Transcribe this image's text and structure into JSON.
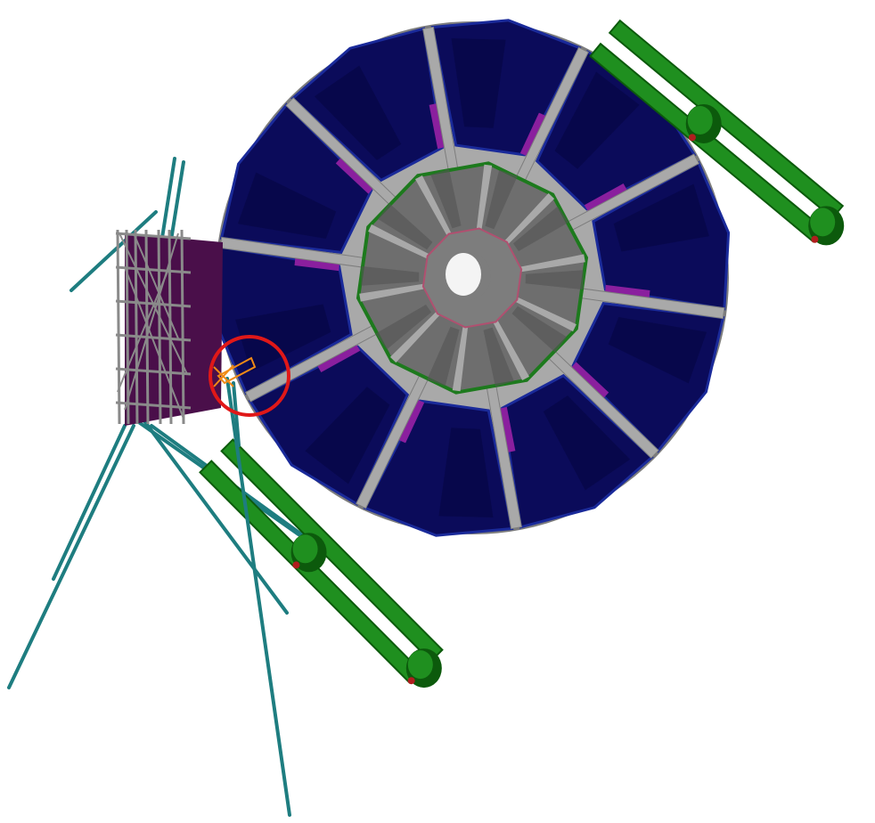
{
  "scene": {
    "subject": "detector-wheel-cad-render",
    "colors": {
      "background": "#ffffff",
      "module_dark": "#0b0b5a",
      "module_edge": "#1a2a9a",
      "module_shade": "#05053f",
      "inner_disk": "#6e6e6e",
      "inner_disk_shade": "#545454",
      "inner_ring_edge": "#1d7a1d",
      "spoke": "#a9a9a9",
      "spoke_dark": "#7d7d7d",
      "purple_accent": "#8a1f9e",
      "support_arm": "#1f8f1f",
      "support_arm_dark": "#0c5a0c",
      "support_arm_tip": "#b01e1e",
      "cable": "#1e7d80",
      "frame": "#8a8a8a",
      "frame_panel": "#4a0f4a",
      "highlight_circle": "#e01818",
      "marker": "#f08a16",
      "bore": "#f4f4f4"
    },
    "icons": {
      "highlight": "red-circle-highlight",
      "marker": "orange-cross-marker"
    }
  }
}
